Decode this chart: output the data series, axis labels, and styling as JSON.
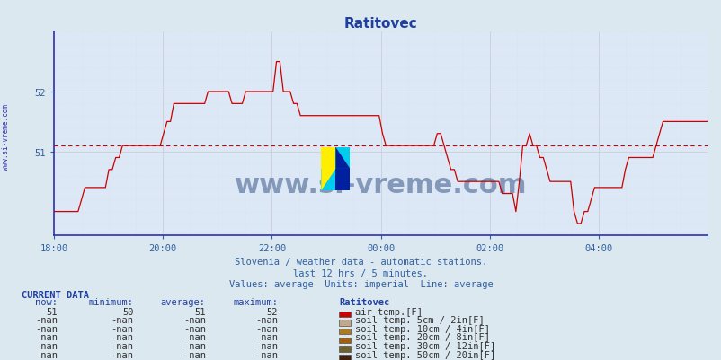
{
  "title": "Ratitovec",
  "bgcolor": "#dce8f0",
  "plot_bgcolor": "#dce8f5",
  "title_color": "#2040a0",
  "axis_color": "#3030b0",
  "line_color": "#cc0000",
  "avg_line_color": "#cc0000",
  "avg_line_value": 51.1,
  "grid_color_major": "#c8c8d8",
  "grid_color_minor": "#dcdce8",
  "xlabel_color": "#3060a0",
  "ylabel_color": "#3060a0",
  "watermark_text": "www.si-vreme.com",
  "watermark_color": "#1a3a70",
  "subtitle1": "Slovenia / weather data - automatic stations.",
  "subtitle2": "last 12 hrs / 5 minutes.",
  "subtitle3": "Values: average  Units: imperial  Line: average",
  "subtitle_color": "#3060a0",
  "current_data_label": "CURRENT DATA",
  "col_headers": [
    "now:",
    "minimum:",
    "average:",
    "maximum:",
    "Ratitovec"
  ],
  "rows": [
    [
      "51",
      "50",
      "51",
      "52",
      "air temp.[F]",
      "#cc0000"
    ],
    [
      "-nan",
      "-nan",
      "-nan",
      "-nan",
      "soil temp. 5cm / 2in[F]",
      "#c0a888"
    ],
    [
      "-nan",
      "-nan",
      "-nan",
      "-nan",
      "soil temp. 10cm / 4in[F]",
      "#b07820"
    ],
    [
      "-nan",
      "-nan",
      "-nan",
      "-nan",
      "soil temp. 20cm / 8in[F]",
      "#a06010"
    ],
    [
      "-nan",
      "-nan",
      "-nan",
      "-nan",
      "soil temp. 30cm / 12in[F]",
      "#706030"
    ],
    [
      "-nan",
      "-nan",
      "-nan",
      "-nan",
      "soil temp. 50cm / 20in[F]",
      "#402010"
    ]
  ],
  "xmin": 0,
  "xmax": 144,
  "ymin": 49.6,
  "ymax": 53.0,
  "xtick_positions": [
    0,
    24,
    48,
    72,
    96,
    120,
    144
  ],
  "xtick_labels": [
    "18:00",
    "20:00",
    "22:00",
    "00:00",
    "02:00",
    "04:00",
    ""
  ],
  "ytick_positions": [
    51.0,
    52.0
  ],
  "ytick_labels": [
    "51",
    "52"
  ],
  "temp_data": [
    50.0,
    50.0,
    50.0,
    50.0,
    50.0,
    50.0,
    50.0,
    50.0,
    50.2,
    50.4,
    50.4,
    50.4,
    50.4,
    50.4,
    50.4,
    50.4,
    50.7,
    50.7,
    50.9,
    50.9,
    51.1,
    51.1,
    51.1,
    51.1,
    51.1,
    51.1,
    51.1,
    51.1,
    51.1,
    51.1,
    51.1,
    51.1,
    51.3,
    51.5,
    51.5,
    51.8,
    51.8,
    51.8,
    51.8,
    51.8,
    51.8,
    51.8,
    51.8,
    51.8,
    51.8,
    52.0,
    52.0,
    52.0,
    52.0,
    52.0,
    52.0,
    52.0,
    51.8,
    51.8,
    51.8,
    51.8,
    52.0,
    52.0,
    52.0,
    52.0,
    52.0,
    52.0,
    52.0,
    52.0,
    52.0,
    52.5,
    52.5,
    52.0,
    52.0,
    52.0,
    51.8,
    51.8,
    51.6,
    51.6,
    51.6,
    51.6,
    51.6,
    51.6,
    51.6,
    51.6,
    51.6,
    51.6,
    51.6,
    51.6,
    51.6,
    51.6,
    51.6,
    51.6,
    51.6,
    51.6,
    51.6,
    51.6,
    51.6,
    51.6,
    51.6,
    51.6,
    51.3,
    51.1,
    51.1,
    51.1,
    51.1,
    51.1,
    51.1,
    51.1,
    51.1,
    51.1,
    51.1,
    51.1,
    51.1,
    51.1,
    51.1,
    51.1,
    51.3,
    51.3,
    51.1,
    50.9,
    50.7,
    50.7,
    50.5,
    50.5,
    50.5,
    50.5,
    50.5,
    50.5,
    50.5,
    50.5,
    50.5,
    50.5,
    50.5,
    50.5,
    50.5,
    50.3,
    50.3,
    50.3,
    50.3,
    50.0,
    50.5,
    51.1,
    51.1,
    51.3,
    51.1,
    51.1,
    50.9,
    50.9,
    50.7,
    50.5,
    50.5,
    50.5,
    50.5,
    50.5,
    50.5,
    50.5,
    50.0,
    49.8,
    49.8,
    50.0,
    50.0,
    50.2,
    50.4,
    50.4,
    50.4,
    50.4,
    50.4,
    50.4,
    50.4,
    50.4,
    50.4,
    50.7,
    50.9,
    50.9,
    50.9,
    50.9,
    50.9,
    50.9,
    50.9,
    50.9,
    51.1,
    51.3,
    51.5,
    51.5,
    51.5,
    51.5,
    51.5,
    51.5,
    51.5,
    51.5,
    51.5,
    51.5,
    51.5,
    51.5,
    51.5,
    51.5
  ]
}
